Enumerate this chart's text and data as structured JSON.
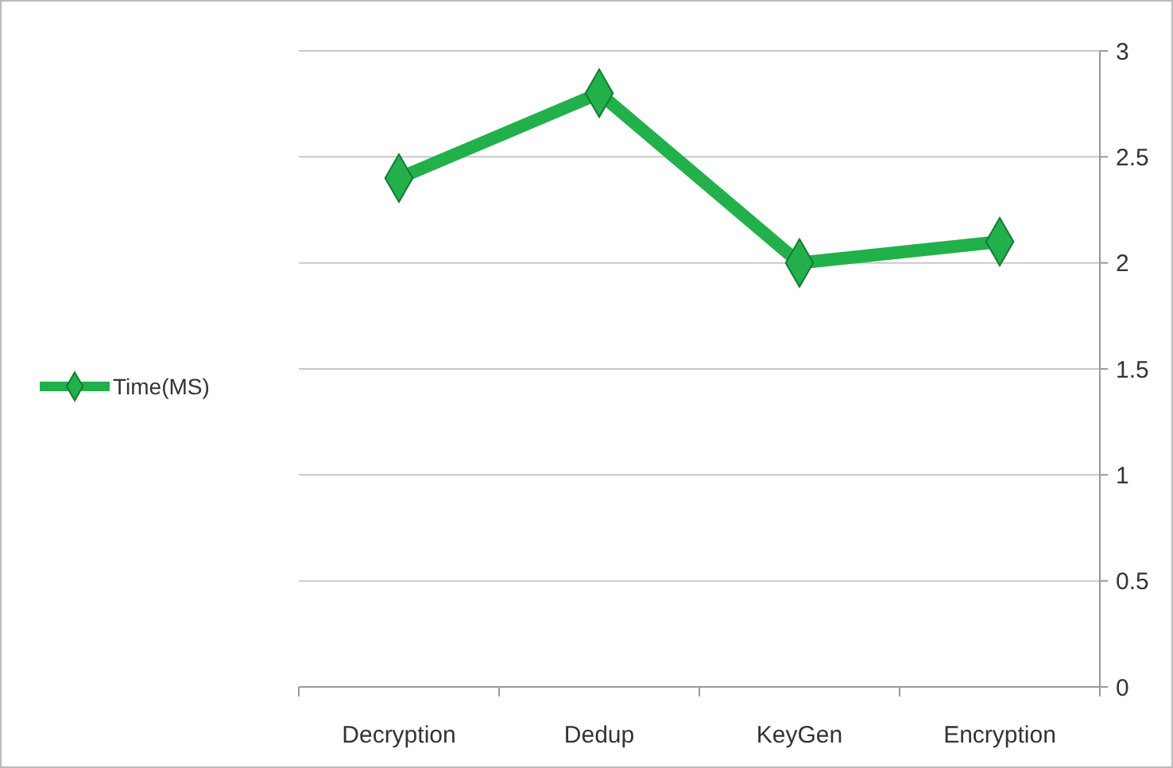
{
  "chart_data": {
    "type": "line",
    "categories": [
      "Decryption",
      "Dedup",
      "KeyGen",
      "Encryption"
    ],
    "series": [
      {
        "name": "Time(MS)",
        "color": "#22b04b",
        "values": [
          2.4,
          2.8,
          2.0,
          2.1
        ]
      }
    ],
    "ylim": [
      0,
      3
    ],
    "yticks": [
      0,
      0.5,
      1,
      1.5,
      2,
      2.5,
      3
    ],
    "grid": "y",
    "legend": "left",
    "marker": "diamond",
    "line_style": "solid"
  }
}
